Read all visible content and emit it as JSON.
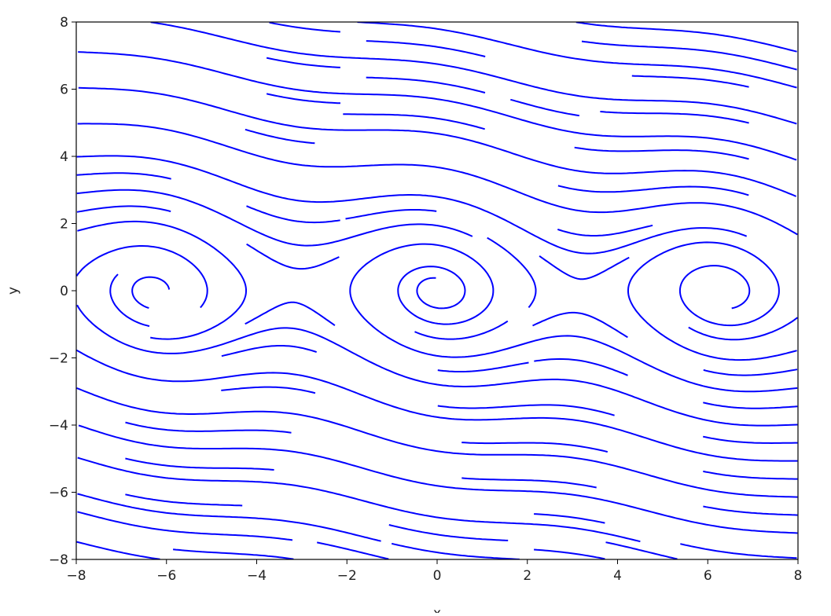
{
  "chart_data": {
    "type": "streamplot",
    "xlabel": "x",
    "ylabel": "y",
    "xlim": [
      -8,
      8
    ],
    "ylim": [
      -8,
      8
    ],
    "xticks": [
      "−8",
      "−6",
      "−4",
      "−2",
      "0",
      "2",
      "4",
      "6",
      "8"
    ],
    "yticks": [
      "−8",
      "−6",
      "−4",
      "−2",
      "0",
      "2",
      "4",
      "6",
      "8"
    ],
    "xtick_values": [
      -8,
      -6,
      -4,
      -2,
      0,
      2,
      4,
      6,
      8
    ],
    "ytick_values": [
      -8,
      -6,
      -4,
      -2,
      0,
      2,
      4,
      6,
      8
    ],
    "field": {
      "dx": "y",
      "dy": "-sin(x) - 0.2*y"
    },
    "spiral_centers": [
      [
        -6.28,
        0
      ],
      [
        0,
        0
      ],
      [
        6.28,
        0
      ]
    ],
    "line_color": "#0000ff",
    "grid": false,
    "legend": "none"
  }
}
